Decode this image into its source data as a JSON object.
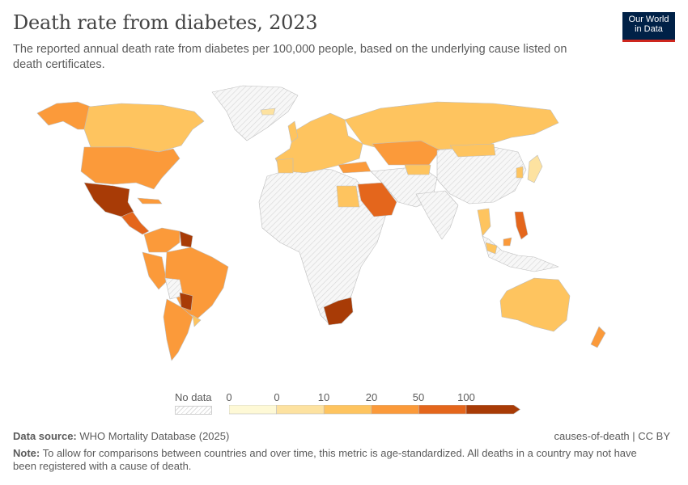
{
  "header": {
    "title": "Death rate from diabetes, 2023",
    "subtitle": "The reported annual death rate from diabetes per 100,000 people, based on the underlying cause listed on death certificates.",
    "logo_line1": "Our World",
    "logo_line2": "in Data"
  },
  "legend": {
    "no_data_label": "No data",
    "tick_labels": [
      "0",
      "0",
      "10",
      "20",
      "50",
      "100"
    ],
    "bins": [
      {
        "color": "#fef9d6"
      },
      {
        "color": "#fde2a0"
      },
      {
        "color": "#fec45f"
      },
      {
        "color": "#fb9a3a"
      },
      {
        "color": "#e4661c"
      },
      {
        "color": "#a83b06"
      }
    ],
    "no_data_color": "#eeeeee"
  },
  "map_colors": {
    "ocean": "#ffffff",
    "border": "#bdbdbd"
  },
  "footer": {
    "source_label": "Data source:",
    "source_text": "WHO Mortality Database (2025)",
    "license": "causes-of-death | CC BY",
    "note_label": "Note:",
    "note_text": "To allow for comparisons between countries and over time, this metric is age-standardized. All deaths in a country may not have been registered with a cause of death."
  }
}
